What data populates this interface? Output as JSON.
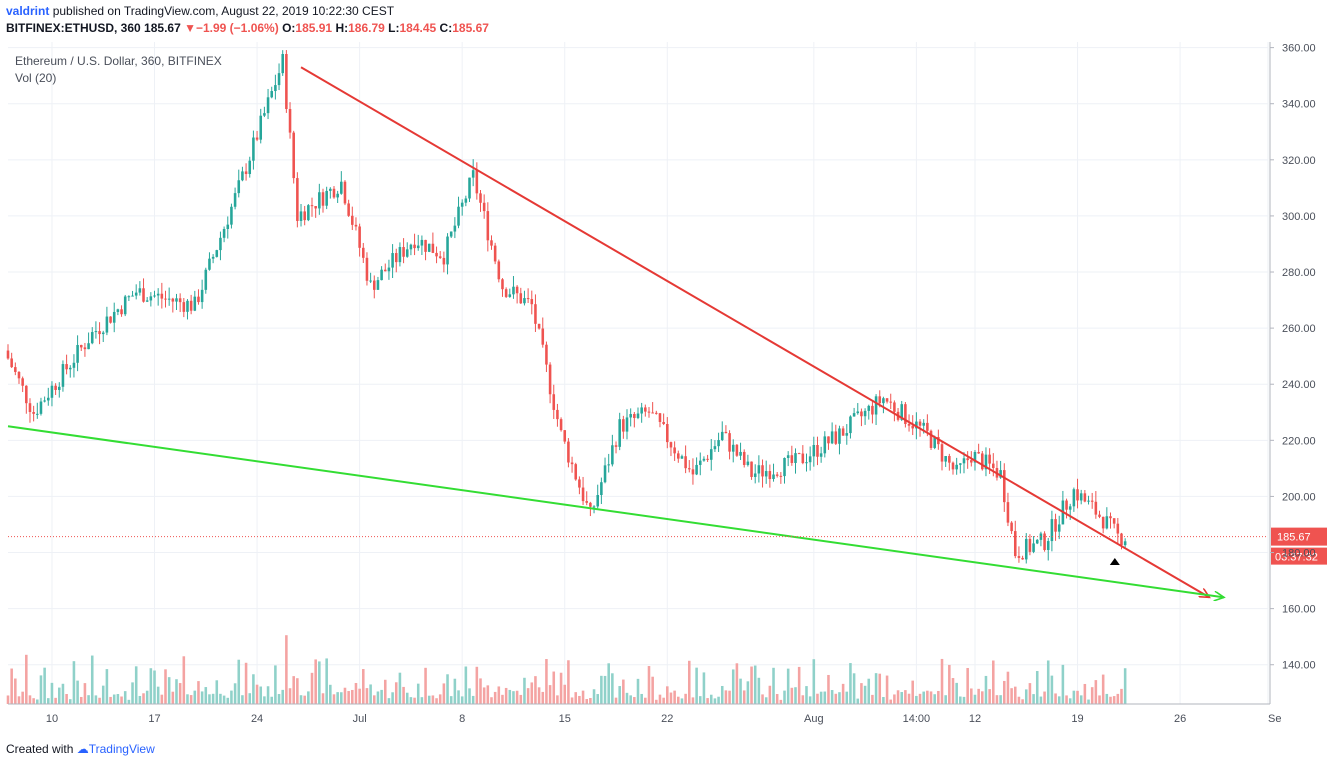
{
  "header": {
    "username": "valdrint",
    "published_text": "published on TradingView.com, August 22, 2019 10:22:30 CEST",
    "symbol": "BITFINEX:ETHUSD, 360",
    "last": "185.67",
    "change": "−1.99 (−1.06%)",
    "o_label": "O:",
    "o_value": "185.91",
    "h_label": "H:",
    "h_value": "186.79",
    "l_label": "L:",
    "l_value": "184.45",
    "c_label": "C:",
    "c_value": "185.67"
  },
  "footer": {
    "created_with": "Created with",
    "brand": "TradingView"
  },
  "colors": {
    "up": "#26a69a",
    "down": "#ef5350",
    "vol_up": "#8fd1c9",
    "vol_down": "#f4a3a2",
    "resistance": "#e53935",
    "support": "#33dd33",
    "grid": "#eef1f6",
    "axis_text": "#4a4f5a"
  },
  "chart_data": {
    "type": "candlestick",
    "title": "Ethereum / U.S. Dollar, 360, BITFINEX",
    "volume_label": "Vol (20)",
    "ylim": [
      126,
      362
    ],
    "y_ticks": [
      140,
      160,
      180,
      200,
      220,
      240,
      260,
      280,
      300,
      320,
      340,
      360
    ],
    "y_tick_labels": [
      "140.00",
      "160.00",
      "180.00",
      "200.00",
      "220.00",
      "240.00",
      "260.00",
      "280.00",
      "300.00",
      "320.00",
      "340.00",
      "360.00"
    ],
    "x_tick_labels": [
      "10",
      "17",
      "24",
      "Jul",
      "8",
      "15",
      "22",
      "Aug",
      "14:00",
      "12",
      "19",
      "26",
      "Se"
    ],
    "last_price_label": "185.67",
    "last_price": 185.67,
    "countdown_label": "03:37:32",
    "key_points": [
      {
        "date": "2019-06-07",
        "close": 252
      },
      {
        "date": "2019-06-09",
        "close": 230
      },
      {
        "date": "2019-06-13",
        "close": 258
      },
      {
        "date": "2019-06-16",
        "close": 273
      },
      {
        "date": "2019-06-20",
        "close": 268
      },
      {
        "date": "2019-06-23",
        "close": 310
      },
      {
        "date": "2019-06-26",
        "close": 355
      },
      {
        "date": "2019-06-27",
        "close": 300
      },
      {
        "date": "2019-06-30",
        "close": 312
      },
      {
        "date": "2019-07-02",
        "close": 275
      },
      {
        "date": "2019-07-05",
        "close": 292
      },
      {
        "date": "2019-07-07",
        "close": 286
      },
      {
        "date": "2019-07-09",
        "close": 314
      },
      {
        "date": "2019-07-11",
        "close": 275
      },
      {
        "date": "2019-07-13",
        "close": 268
      },
      {
        "date": "2019-07-15",
        "close": 222
      },
      {
        "date": "2019-07-17",
        "close": 193
      },
      {
        "date": "2019-07-19",
        "close": 225
      },
      {
        "date": "2019-07-21",
        "close": 230
      },
      {
        "date": "2019-07-24",
        "close": 208
      },
      {
        "date": "2019-07-26",
        "close": 222
      },
      {
        "date": "2019-07-28",
        "close": 208
      },
      {
        "date": "2019-07-31",
        "close": 212
      },
      {
        "date": "2019-08-03",
        "close": 222
      },
      {
        "date": "2019-08-06",
        "close": 235
      },
      {
        "date": "2019-08-09",
        "close": 222
      },
      {
        "date": "2019-08-11",
        "close": 208
      },
      {
        "date": "2019-08-12",
        "close": 215
      },
      {
        "date": "2019-08-14",
        "close": 208
      },
      {
        "date": "2019-08-15",
        "close": 180
      },
      {
        "date": "2019-08-17",
        "close": 184
      },
      {
        "date": "2019-08-19",
        "close": 202
      },
      {
        "date": "2019-08-21",
        "close": 192
      },
      {
        "date": "2019-08-22",
        "close": 185.67
      }
    ],
    "resistance_line": {
      "from": {
        "date": "2019-06-27",
        "price": 353
      },
      "to": {
        "date": "2019-08-28",
        "price": 164
      }
    },
    "support_line": {
      "from": {
        "date": "2019-06-07",
        "price": 225
      },
      "to": {
        "date": "2019-08-29",
        "price": 164
      }
    }
  }
}
